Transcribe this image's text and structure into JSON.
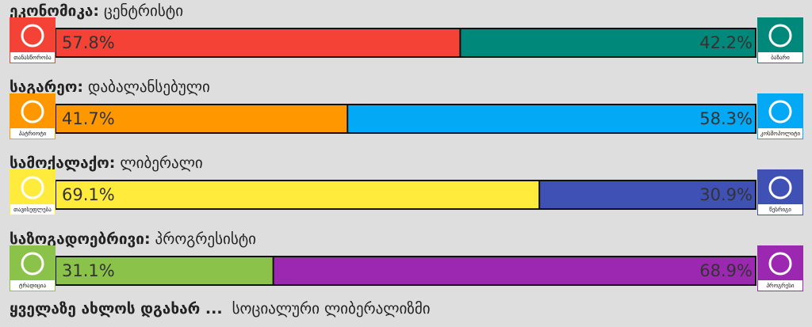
{
  "axes": [
    {
      "name": "ეკონომიკა:",
      "result": "ცენტრისტი",
      "left": {
        "icon_label": "თანასწორობა",
        "value": 57.8,
        "label": "57.8%",
        "color": "#f44336"
      },
      "right": {
        "icon_label": "ბაზარი",
        "value": 42.2,
        "label": "42.2%",
        "color": "#00897b"
      }
    },
    {
      "name": "საგარეო:",
      "result": "დაბალანსებული",
      "left": {
        "icon_label": "პატრიოტი",
        "value": 41.7,
        "label": "41.7%",
        "color": "#ff9800"
      },
      "right": {
        "icon_label": "კოსმოპოლიტი",
        "value": 58.3,
        "label": "58.3%",
        "color": "#03a9f4"
      }
    },
    {
      "name": "სამოქალაქო:",
      "result": "ლიბერალი",
      "left": {
        "icon_label": "თავისუფლება",
        "value": 69.1,
        "label": "69.1%",
        "color": "#ffeb3b"
      },
      "right": {
        "icon_label": "წესრიგი",
        "value": 30.9,
        "label": "30.9%",
        "color": "#3f51b5"
      }
    },
    {
      "name": "საზოგადოებრივი:",
      "result": "პროგრესისტი",
      "left": {
        "icon_label": "ტრადიცია",
        "value": 31.1,
        "label": "31.1%",
        "color": "#8bc34a"
      },
      "right": {
        "icon_label": "პროგრესი",
        "value": 68.9,
        "label": "68.9%",
        "color": "#9c27b0"
      }
    }
  ],
  "footer": {
    "prefix": "ყველაზე ახლოს დგახარ ...",
    "ideology": "სოციალური ლიბერალიზმი"
  }
}
